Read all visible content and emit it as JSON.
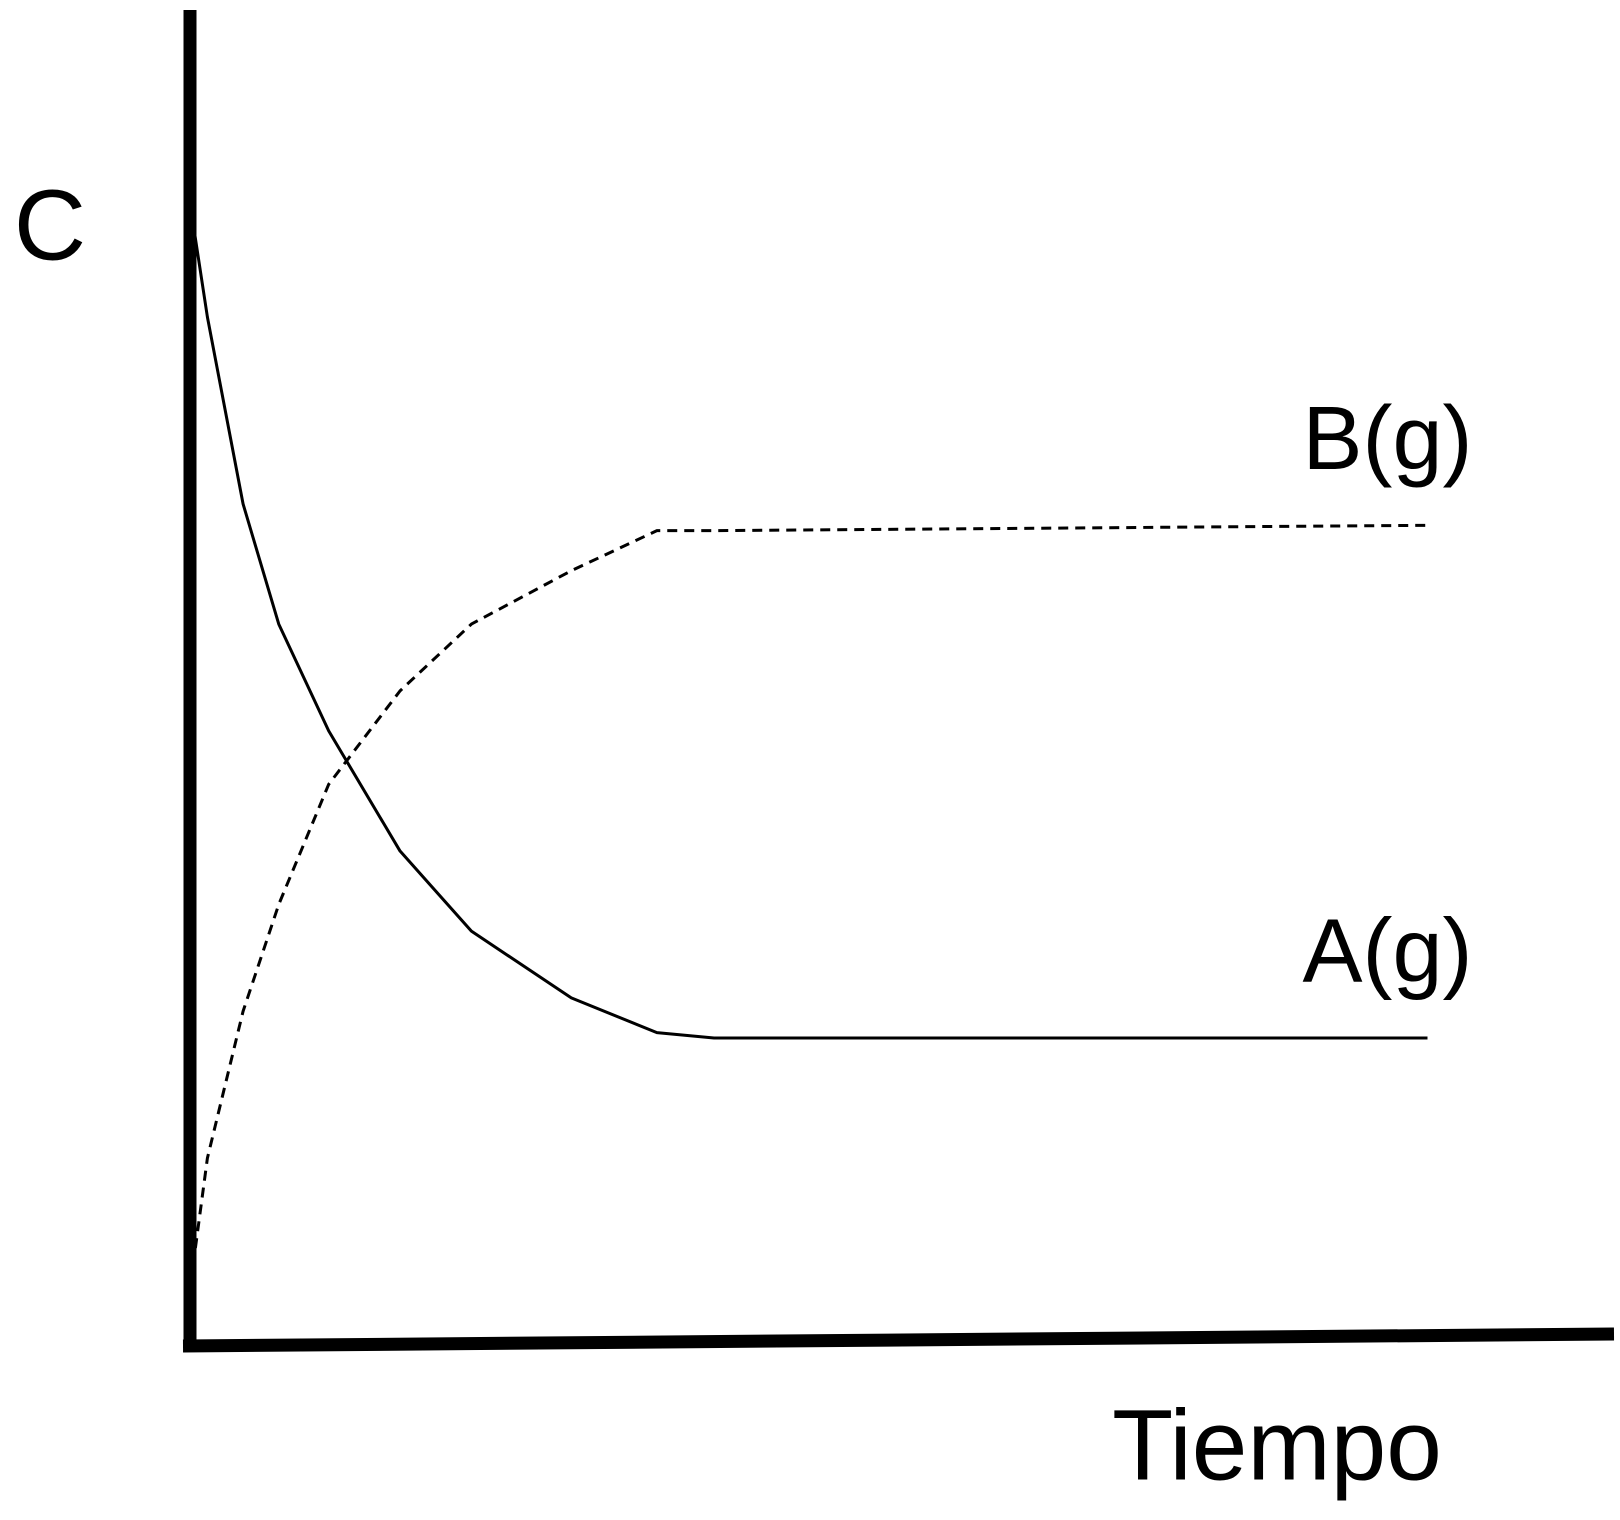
{
  "chart_data": {
    "type": "line",
    "y_label": "C",
    "x_label": "Tiempo",
    "x": [
      0.5,
      1.5,
      4,
      6.5,
      10,
      15,
      20,
      27,
      33,
      37,
      87
    ],
    "series": [
      {
        "name": "B(g)",
        "color": "#000000",
        "style": "dashed",
        "values": [
          6,
          14,
          25,
          33,
          42,
          49,
          54,
          58,
          61,
          61,
          61.4
        ]
      },
      {
        "name": "A(g)",
        "color": "#000000",
        "style": "solid",
        "values": [
          84,
          77,
          63,
          54,
          46,
          37,
          31,
          26,
          23.4,
          23,
          23
        ]
      }
    ],
    "xlim": [
      0,
      100
    ],
    "ylim": [
      0,
      100
    ]
  }
}
